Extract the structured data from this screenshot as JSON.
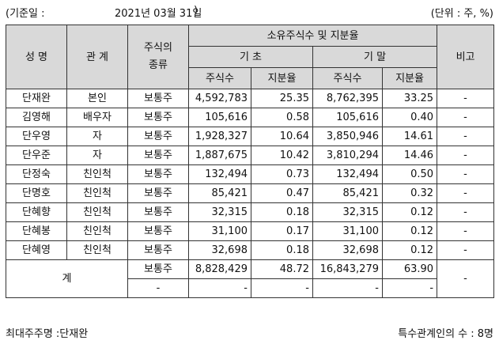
{
  "header": {
    "basis_label": "(기준일 :",
    "basis_date": "2021년 03월 31일",
    "basis_close": ")",
    "unit": "(단위 : 주, %)"
  },
  "columns": {
    "name": "성 명",
    "relation": "관 계",
    "stock_type": "주식의\n종류",
    "holdings": "소유주식수 및 지분율",
    "begin": "기 초",
    "end": "기 말",
    "shares": "주식수",
    "ratio": "지분율",
    "note": "비고"
  },
  "rows": [
    {
      "name": "단재완",
      "relation": "본인",
      "type": "보통주",
      "begin_shares": "4,592,783",
      "begin_ratio": "25.35",
      "end_shares": "8,762,395",
      "end_ratio": "33.25",
      "note": "-"
    },
    {
      "name": "김영해",
      "relation": "배우자",
      "type": "보통주",
      "begin_shares": "105,616",
      "begin_ratio": "0.58",
      "end_shares": "105,616",
      "end_ratio": "0.40",
      "note": "-"
    },
    {
      "name": "단우영",
      "relation": "자",
      "type": "보통주",
      "begin_shares": "1,928,327",
      "begin_ratio": "10.64",
      "end_shares": "3,850,946",
      "end_ratio": "14.61",
      "note": "-"
    },
    {
      "name": "단우준",
      "relation": "자",
      "type": "보통주",
      "begin_shares": "1,887,675",
      "begin_ratio": "10.42",
      "end_shares": "3,810,294",
      "end_ratio": "14.46",
      "note": "-"
    },
    {
      "name": "단정숙",
      "relation": "친인척",
      "type": "보통주",
      "begin_shares": "132,494",
      "begin_ratio": "0.73",
      "end_shares": "132,494",
      "end_ratio": "0.50",
      "note": "-"
    },
    {
      "name": "단명호",
      "relation": "친인척",
      "type": "보통주",
      "begin_shares": "85,421",
      "begin_ratio": "0.47",
      "end_shares": "85,421",
      "end_ratio": "0.32",
      "note": "-"
    },
    {
      "name": "단혜향",
      "relation": "친인척",
      "type": "보통주",
      "begin_shares": "32,315",
      "begin_ratio": "0.18",
      "end_shares": "32,315",
      "end_ratio": "0.12",
      "note": "-"
    },
    {
      "name": "단혜봉",
      "relation": "친인척",
      "type": "보통주",
      "begin_shares": "31,100",
      "begin_ratio": "0.17",
      "end_shares": "31,100",
      "end_ratio": "0.12",
      "note": "-"
    },
    {
      "name": "단혜영",
      "relation": "친인척",
      "type": "보통주",
      "begin_shares": "32,698",
      "begin_ratio": "0.18",
      "end_shares": "32,698",
      "end_ratio": "0.12",
      "note": "-"
    }
  ],
  "total": {
    "label": "계",
    "rows": [
      {
        "type": "보통주",
        "begin_shares": "8,828,429",
        "begin_ratio": "48.72",
        "end_shares": "16,843,279",
        "end_ratio": "63.90",
        "note": "-"
      },
      {
        "type": "-",
        "begin_shares": "-",
        "begin_ratio": "-",
        "end_shares": "-",
        "end_ratio": "-",
        "note": "-"
      }
    ]
  },
  "footer": {
    "largest_shareholder": "최대주주명 :단재완",
    "related_count": "특수관계인의 수 : 8명"
  }
}
